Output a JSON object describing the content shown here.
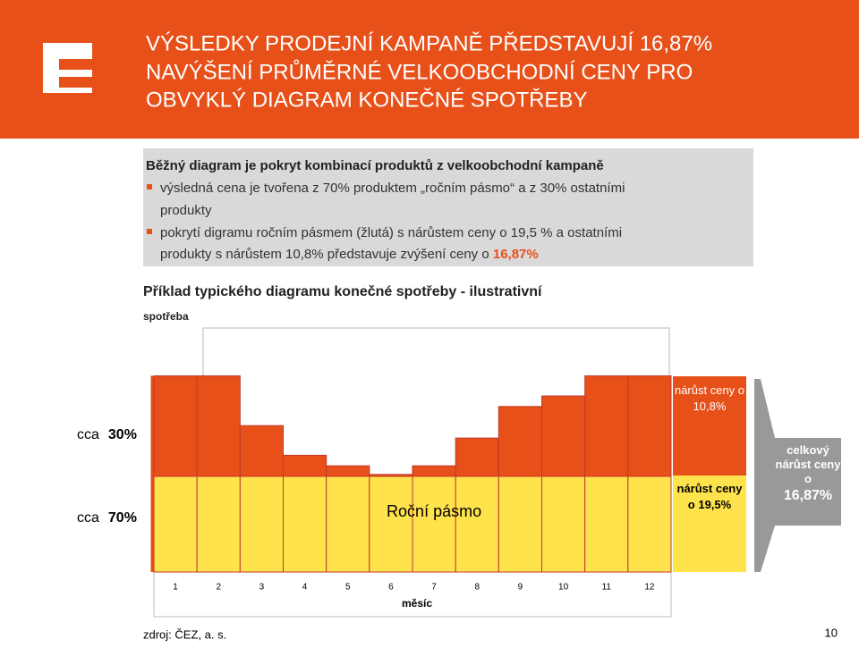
{
  "header": {
    "title_lines": [
      "VÝSLEDKY PRODEJNÍ KAMPANĚ PŘEDSTAVUJÍ 16,87%",
      "NAVÝŠENÍ PRŮMĚRNÉ VELKOOBCHODNÍ CENY PRO",
      "OBVYKLÝ DIAGRAM KONEČNÉ SPOTŘEBY"
    ]
  },
  "box": {
    "heading": "Běžný diagram je pokryt kombinací produktů z velkoobchodní kampaně",
    "bullets": [
      {
        "lines": [
          "výsledná cena je tvořena z 70% produktem „ročním pásmo“ a z 30% ostatními",
          "produkty"
        ]
      },
      {
        "lines": [
          "pokrytí digramu ročním pásmem (žlutá) s nárůstem ceny o 19,5 % a ostatními",
          "produkty s nárůstem 10,8% představuje zvýšení ceny o "
        ],
        "highlight": "16,87%"
      }
    ]
  },
  "chart_data": {
    "type": "stacked-bar",
    "title": "Příklad typického diagramu konečné spotřeby - ilustrativní",
    "y_label": "spotřeba",
    "x_label": "měsíc",
    "categories": [
      "1",
      "2",
      "3",
      "4",
      "5",
      "6",
      "7",
      "8",
      "9",
      "10",
      "11",
      "12"
    ],
    "series": [
      {
        "name": "Roční pásmo",
        "color": "#ffe34c",
        "values": [
          100,
          100,
          100,
          100,
          100,
          100,
          100,
          100,
          100,
          100,
          100,
          100
        ]
      },
      {
        "color": "#e8501a",
        "values": [
          105,
          105,
          53,
          22,
          11,
          2,
          11,
          40,
          73,
          84,
          105,
          105
        ]
      }
    ],
    "ylim": [
      0,
      255
    ],
    "share_labels": [
      {
        "prefix": "cca",
        "value": "30%"
      },
      {
        "prefix": "cca",
        "value": "70%"
      }
    ],
    "increase_labels": [
      "nárůst ceny o 10,8%",
      "nárůst ceny o 19,5%"
    ],
    "total_label": {
      "text": "celkový nárůst ceny o",
      "value": "16,87%"
    }
  },
  "footer": {
    "source": "zdroj: ČEZ, a. s.",
    "page": "10"
  }
}
